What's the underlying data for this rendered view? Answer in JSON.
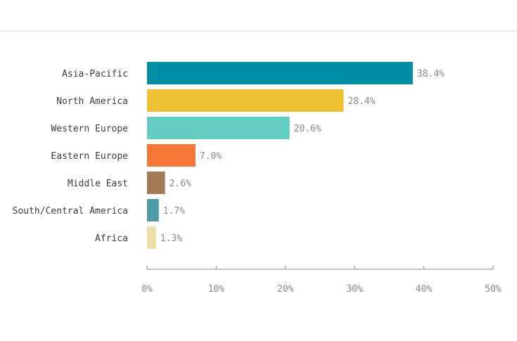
{
  "chart_data": {
    "type": "bar",
    "orientation": "horizontal",
    "categories": [
      "Asia-Pacific",
      "North America",
      "Western Europe",
      "Eastern Europe",
      "Middle East",
      "South/Central America",
      "Africa"
    ],
    "values": [
      38.4,
      28.4,
      20.6,
      7.0,
      2.6,
      1.7,
      1.3
    ],
    "value_labels": [
      "38.4%",
      "28.4%",
      "20.6%",
      "7.0%",
      "2.6%",
      "1.7%",
      "1.3%"
    ],
    "colors": [
      "#008ea6",
      "#f0c033",
      "#62cdc0",
      "#f47835",
      "#a07a55",
      "#4e9aa6",
      "#f1dfa8"
    ],
    "xlim": [
      0,
      50
    ],
    "xticks": [
      0,
      10,
      20,
      30,
      40,
      50
    ],
    "xtick_labels": [
      "0%",
      "10%",
      "20%",
      "30%",
      "40%",
      "50%"
    ],
    "grid": false,
    "legend": "none"
  }
}
